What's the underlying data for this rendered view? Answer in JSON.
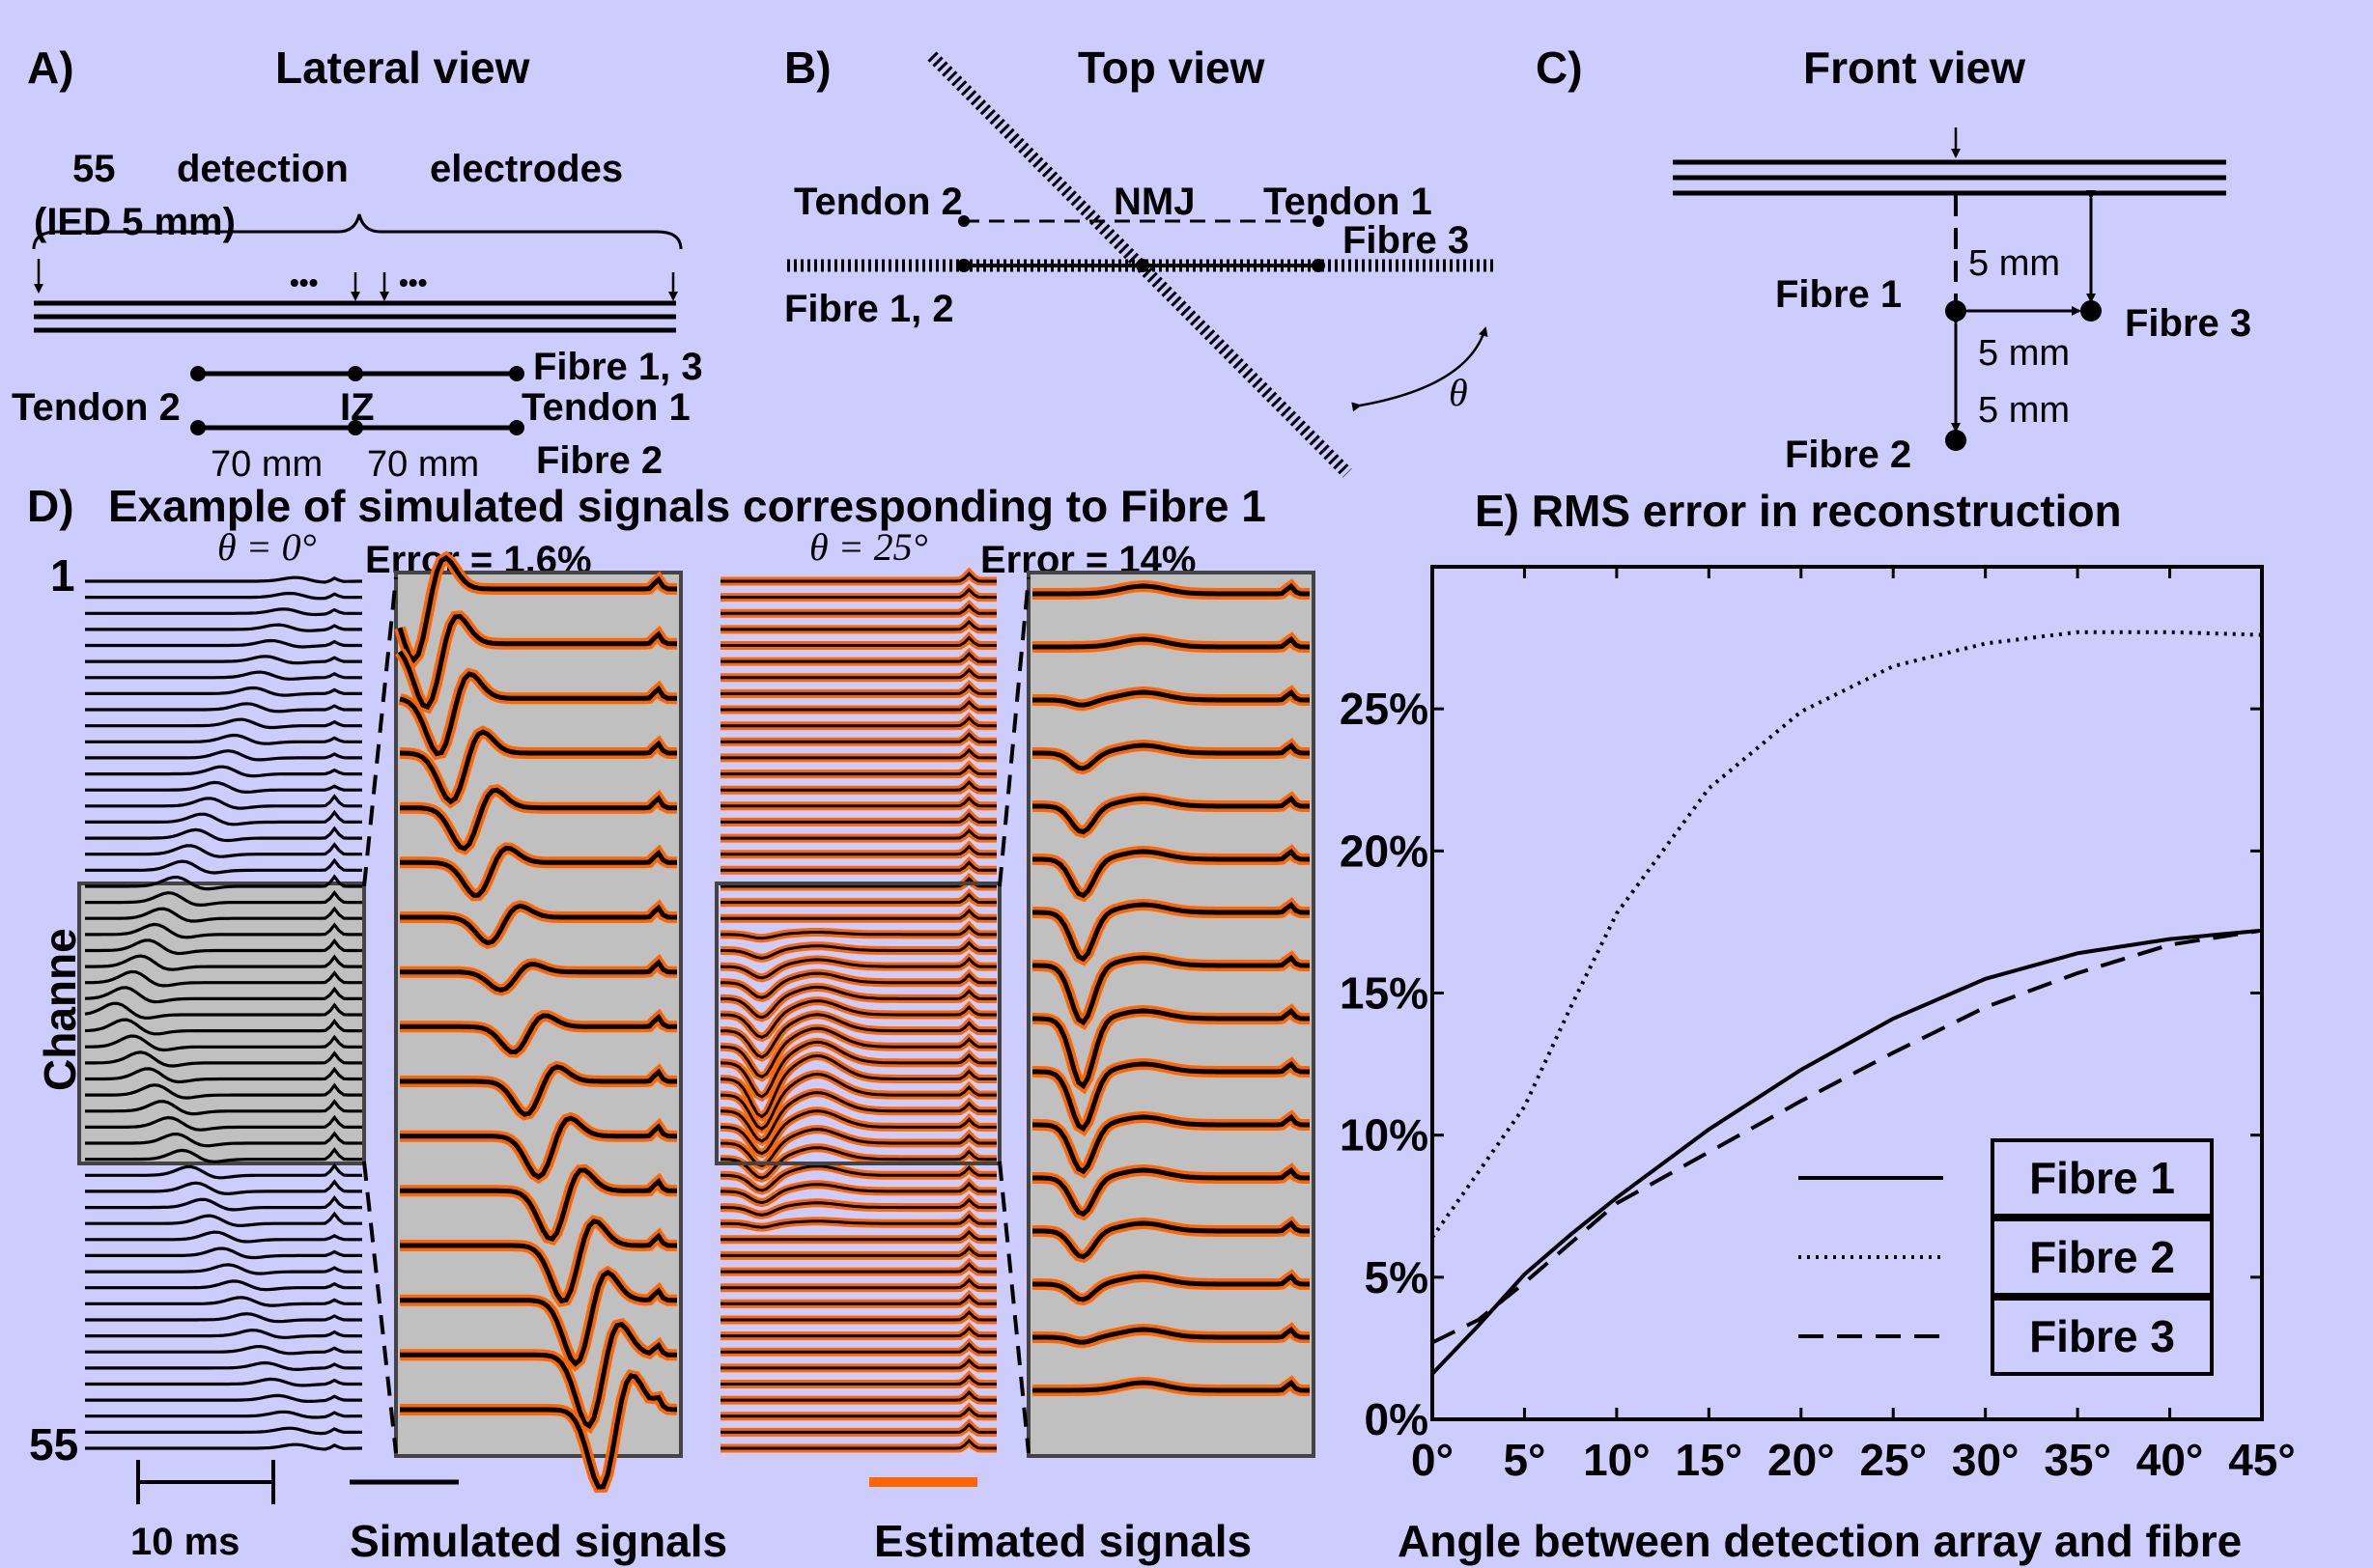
{
  "panelA": {
    "label": "A)",
    "title": "Lateral view",
    "electrodes_line1": [
      "55",
      "detection",
      "electrodes"
    ],
    "electrodes_line2": "(IED 5 mm)",
    "dots": "•••",
    "fibre13": "Fibre 1, 3",
    "fibre2": "Fibre 2",
    "tendon2": "Tendon 2",
    "tendon1": "Tendon 1",
    "iz": "IZ",
    "dist_left": "70 mm",
    "dist_right": "70 mm"
  },
  "panelB": {
    "label": "B)",
    "title": "Top view",
    "tendon2": "Tendon 2",
    "nmj": "NMJ",
    "tendon1": "Tendon 1",
    "fibre3": "Fibre 3",
    "fibre12": "Fibre 1, 2",
    "theta": "θ"
  },
  "panelC": {
    "label": "C)",
    "title": "Front view",
    "fibre1": "Fibre 1",
    "fibre2": "Fibre 2",
    "fibre3": "Fibre 3",
    "d_vertical_upper": "5 mm",
    "d_horizontal": "5 mm",
    "d_vertical_lower": "5 mm"
  },
  "panelD": {
    "label": "D)",
    "title": "Example of simulated signals corresponding to Fibre 1",
    "theta0": "θ = 0°",
    "error0": "Error = 1.6%",
    "theta25": "θ = 25°",
    "error25": "Error = 14%",
    "channel_top": "1",
    "channel_bottom": "55",
    "channel_axis": "Channe",
    "scale_label": "10 ms",
    "legend_simulated": "Simulated signals",
    "legend_estimated": "Estimated signals"
  },
  "colors": {
    "background": "#ccccff",
    "estimated": "#ff6600",
    "simulated": "#000000",
    "panel_fill": "#c0c0c0"
  },
  "chart_data": {
    "type": "line",
    "title": "E)  RMS error in reconstruction",
    "xlabel": "Angle between detection array and fibre",
    "x_tick_labels": [
      "0°",
      "5°",
      "10°",
      "15°",
      "20°",
      "25°",
      "30°",
      "35°",
      "40°",
      "45°"
    ],
    "y_tick_labels": [
      "0%",
      "5%",
      "10%",
      "15%",
      "20%",
      "25%"
    ],
    "xlim": [
      0,
      45
    ],
    "ylim": [
      0,
      30
    ],
    "x": [
      0,
      2.5,
      5,
      7.5,
      10,
      15,
      20,
      25,
      30,
      35,
      40,
      45
    ],
    "series": [
      {
        "name": "Fibre 1",
        "style": "solid",
        "values": [
          1.6,
          3.3,
          5.1,
          6.5,
          7.8,
          10.2,
          12.3,
          14.1,
          15.5,
          16.4,
          16.9,
          17.2
        ]
      },
      {
        "name": "Fibre 2",
        "style": "dotted",
        "values": [
          6.4,
          8.7,
          11.0,
          14.5,
          17.8,
          22.2,
          24.9,
          26.5,
          27.3,
          27.7,
          27.7,
          27.6
        ]
      },
      {
        "name": "Fibre 3",
        "style": "dashed",
        "values": [
          2.7,
          3.5,
          4.8,
          6.2,
          7.6,
          9.4,
          11.2,
          12.9,
          14.5,
          15.7,
          16.7,
          17.2
        ]
      }
    ],
    "legend_position": "bottom-right",
    "grid": false
  }
}
